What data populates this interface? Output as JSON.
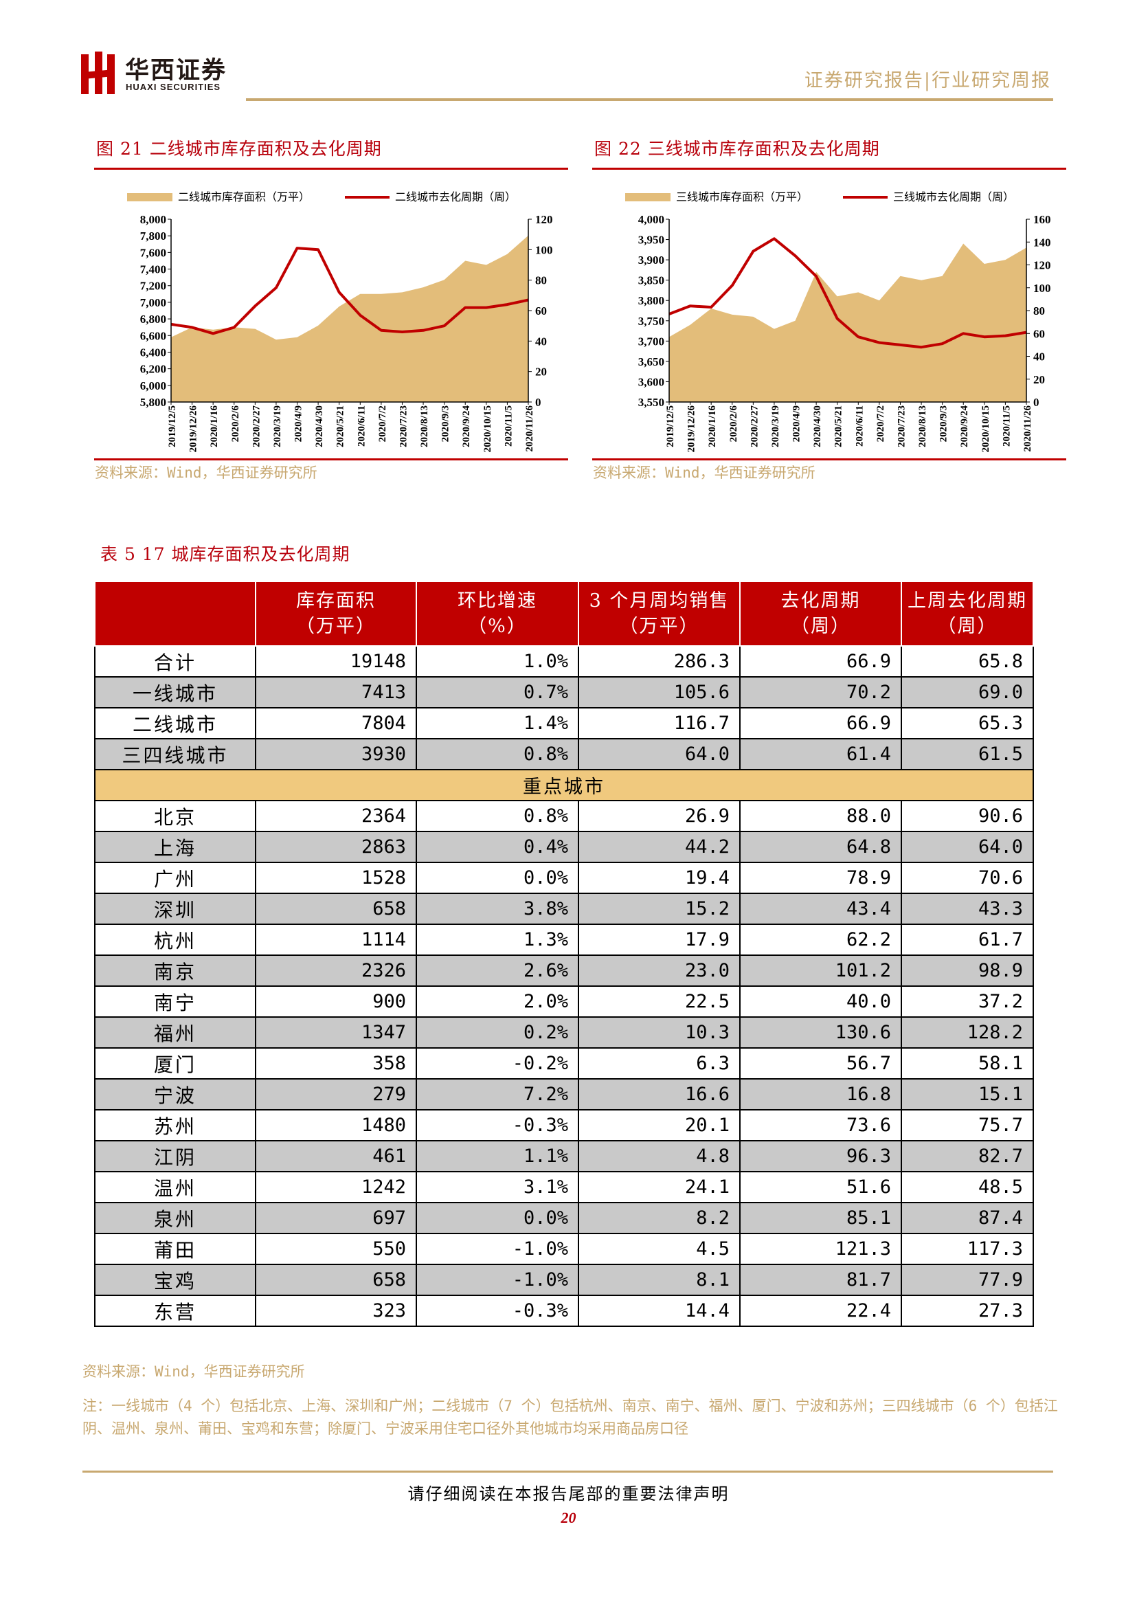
{
  "header": {
    "logo_cn": "华西证券",
    "logo_en": "HUAXI SECURITIES",
    "report_type": "证券研究报告|行业研究周报"
  },
  "colors": {
    "accent_red": "#c00000",
    "gold": "#c8a870",
    "area_fill": "#e3bd7a",
    "band": "#f0c97e"
  },
  "figures": [
    {
      "caption": "图 21 二线城市库存面积及去化周期",
      "source": "资料来源：Wind，华西证券研究所"
    },
    {
      "caption": "图 22 三线城市库存面积及去化周期",
      "source": "资料来源：Wind，华西证券研究所"
    }
  ],
  "chart_data": [
    {
      "type": "area+line",
      "legend": [
        "二线城市库存面积（万平）",
        "二线城市去化周期（周）"
      ],
      "legend_position": "top",
      "x": [
        "2019/12/5",
        "2019/12/26",
        "2020/1/16",
        "2020/2/6",
        "2020/2/27",
        "2020/3/19",
        "2020/4/9",
        "2020/4/30",
        "2020/5/21",
        "2020/6/11",
        "2020/7/2",
        "2020/7/23",
        "2020/8/13",
        "2020/9/3",
        "2020/9/24",
        "2020/10/15",
        "2020/11/5",
        "2020/11/26"
      ],
      "y_left_ticks": [
        "5,800",
        "6,000",
        "6,200",
        "6,400",
        "6,600",
        "6,800",
        "7,000",
        "7,200",
        "7,400",
        "7,600",
        "7,800",
        "8,000"
      ],
      "y_left_range": [
        5800,
        8000
      ],
      "y_right_ticks": [
        "0",
        "20",
        "40",
        "60",
        "80",
        "100",
        "120"
      ],
      "y_right_range": [
        0,
        120
      ],
      "series": [
        {
          "name": "二线城市库存面积（万平）",
          "axis": "left",
          "color": "#e3bd7a",
          "values": [
            6580,
            6700,
            6670,
            6700,
            6680,
            6550,
            6580,
            6720,
            6950,
            7100,
            7100,
            7120,
            7180,
            7270,
            7500,
            7450,
            7580,
            7804
          ]
        },
        {
          "name": "二线城市去化周期（周）",
          "axis": "right",
          "color": "#c00000",
          "values": [
            51,
            49,
            45,
            49,
            63,
            75,
            101,
            100,
            72,
            57,
            47,
            46,
            47,
            50,
            62,
            62,
            64,
            67
          ]
        }
      ],
      "x_tick_labels": [
        "2019/12/5",
        "2019/12/26",
        "2020/1/16",
        "2020/2/6",
        "2020/2/27",
        "2020/3/19",
        "2020/4/9",
        "2020/4/30",
        "2020/5/21",
        "2020/6/11",
        "2020/7/2",
        "2020/7/23",
        "2020/8/13",
        "2020/9/3",
        "2020/9/24",
        "2020/10/15",
        "2020/11/5",
        "2020/11/26"
      ]
    },
    {
      "type": "area+line",
      "legend": [
        "三线城市库存面积（万平）",
        "三线城市去化周期（周）"
      ],
      "legend_position": "top",
      "x": [
        "2019/12/5",
        "2019/12/26",
        "2020/1/16",
        "2020/2/6",
        "2020/2/27",
        "2020/3/19",
        "2020/4/9",
        "2020/4/30",
        "2020/5/21",
        "2020/6/11",
        "2020/7/2",
        "2020/7/23",
        "2020/8/13",
        "2020/9/3",
        "2020/9/24",
        "2020/10/15",
        "2020/11/5",
        "2020/11/26"
      ],
      "y_left_ticks": [
        "3,550",
        "3,600",
        "3,650",
        "3,700",
        "3,750",
        "3,800",
        "3,850",
        "3,900",
        "3,950",
        "4,000"
      ],
      "y_left_range": [
        3550,
        4000
      ],
      "y_right_ticks": [
        "0",
        "20",
        "40",
        "60",
        "80",
        "100",
        "120",
        "140",
        "160"
      ],
      "y_right_range": [
        0,
        160
      ],
      "series": [
        {
          "name": "三线城市库存面积（万平）",
          "axis": "left",
          "color": "#e3bd7a",
          "values": [
            3710,
            3740,
            3780,
            3765,
            3760,
            3730,
            3750,
            3870,
            3810,
            3820,
            3800,
            3860,
            3850,
            3860,
            3940,
            3890,
            3900,
            3930
          ]
        },
        {
          "name": "三线城市去化周期（周）",
          "axis": "right",
          "color": "#c00000",
          "values": [
            77,
            84,
            83,
            102,
            132,
            143,
            128,
            110,
            73,
            57,
            52,
            50,
            48,
            51,
            60,
            57,
            58,
            61
          ]
        }
      ],
      "x_tick_labels": [
        "2019/12/5",
        "2019/12/26",
        "2020/1/16",
        "2020/2/6",
        "2020/2/27",
        "2020/3/19",
        "2020/4/9",
        "2020/4/30",
        "2020/5/21",
        "2020/6/11",
        "2020/7/2",
        "2020/7/23",
        "2020/8/13",
        "2020/9/3",
        "2020/9/24",
        "2020/10/15",
        "2020/11/5",
        "2020/11/26"
      ]
    }
  ],
  "table": {
    "caption": "表 5 17 城库存面积及去化周期",
    "headers": [
      "",
      "库存面积\n（万平）",
      "环比增速\n（%）",
      "3 个月周均销售\n（万平）",
      "去化周期\n（周）",
      "上周去化周期\n（周）"
    ],
    "band_label": "重点城市",
    "summary_rows": [
      [
        "合计",
        "19148",
        "1.0%",
        "286.3",
        "66.9",
        "65.8"
      ],
      [
        "一线城市",
        "7413",
        "0.7%",
        "105.6",
        "70.2",
        "69.0"
      ],
      [
        "二线城市",
        "7804",
        "1.4%",
        "116.7",
        "66.9",
        "65.3"
      ],
      [
        "三四线城市",
        "3930",
        "0.8%",
        "64.0",
        "61.4",
        "61.5"
      ]
    ],
    "city_rows": [
      [
        "北京",
        "2364",
        "0.8%",
        "26.9",
        "88.0",
        "90.6"
      ],
      [
        "上海",
        "2863",
        "0.4%",
        "44.2",
        "64.8",
        "64.0"
      ],
      [
        "广州",
        "1528",
        "0.0%",
        "19.4",
        "78.9",
        "70.6"
      ],
      [
        "深圳",
        "658",
        "3.8%",
        "15.2",
        "43.4",
        "43.3"
      ],
      [
        "杭州",
        "1114",
        "1.3%",
        "17.9",
        "62.2",
        "61.7"
      ],
      [
        "南京",
        "2326",
        "2.6%",
        "23.0",
        "101.2",
        "98.9"
      ],
      [
        "南宁",
        "900",
        "2.0%",
        "22.5",
        "40.0",
        "37.2"
      ],
      [
        "福州",
        "1347",
        "0.2%",
        "10.3",
        "130.6",
        "128.2"
      ],
      [
        "厦门",
        "358",
        "-0.2%",
        "6.3",
        "56.7",
        "58.1"
      ],
      [
        "宁波",
        "279",
        "7.2%",
        "16.6",
        "16.8",
        "15.1"
      ],
      [
        "苏州",
        "1480",
        "-0.3%",
        "20.1",
        "73.6",
        "75.7"
      ],
      [
        "江阴",
        "461",
        "1.1%",
        "4.8",
        "96.3",
        "82.7"
      ],
      [
        "温州",
        "1242",
        "3.1%",
        "24.1",
        "51.6",
        "48.5"
      ],
      [
        "泉州",
        "697",
        "0.0%",
        "8.2",
        "85.1",
        "87.4"
      ],
      [
        "莆田",
        "550",
        "-1.0%",
        "4.5",
        "121.3",
        "117.3"
      ],
      [
        "宝鸡",
        "658",
        "-1.0%",
        "8.1",
        "81.7",
        "77.9"
      ],
      [
        "东营",
        "323",
        "-0.3%",
        "14.4",
        "22.4",
        "27.3"
      ]
    ],
    "source": "资料来源：Wind，华西证券研究所",
    "note": "注：一线城市（4 个）包括北京、上海、深圳和广州；二线城市（7 个）包括杭州、南京、南宁、福州、厦门、宁波和苏州；三四线城市（6 个）包括江阴、温州、泉州、莆田、宝鸡和东营；除厦门、宁波采用住宅口径外其他城市均采用商品房口径"
  },
  "footer": {
    "disclaimer": "请仔细阅读在本报告尾部的重要法律声明",
    "page_number": "20"
  }
}
